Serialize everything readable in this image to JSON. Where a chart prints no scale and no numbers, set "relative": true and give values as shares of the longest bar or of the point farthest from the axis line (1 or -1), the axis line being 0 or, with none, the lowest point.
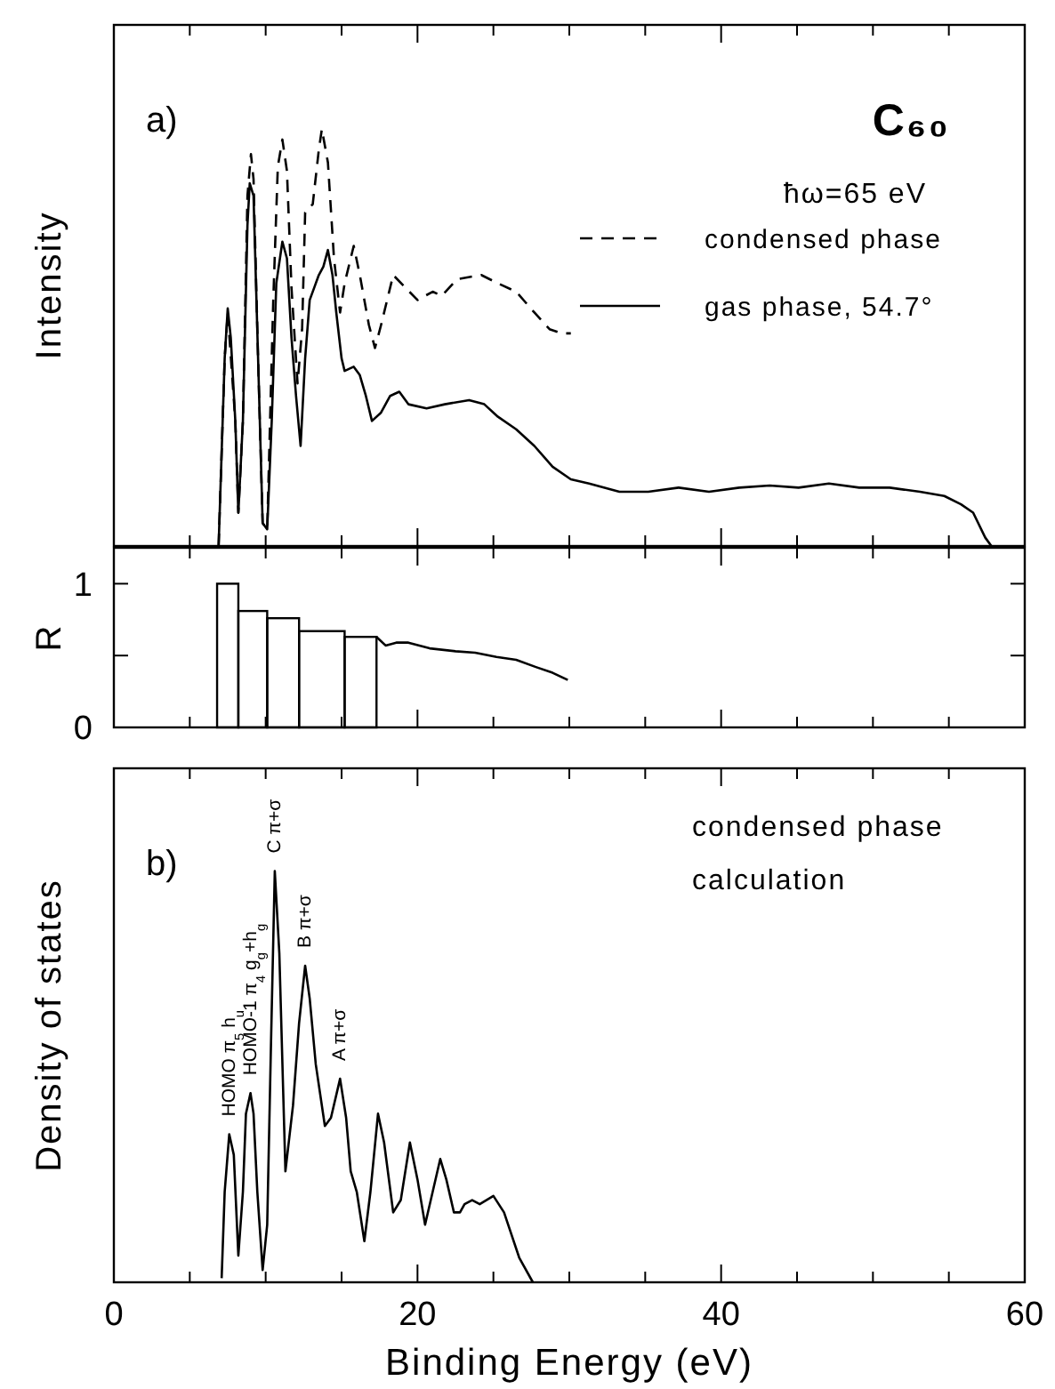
{
  "chart_data": [
    {
      "type": "line",
      "relative": true,
      "ylabel": "Intensity",
      "xlim": [
        0,
        60
      ],
      "xticks": [
        0,
        {
          "value": 5,
          "label": null
        },
        {
          "value": 10,
          "label": null
        },
        {
          "value": 15,
          "label": null
        },
        20,
        {
          "value": 25,
          "label": null
        },
        {
          "value": 30,
          "label": null
        },
        {
          "value": 35,
          "label": null
        },
        40,
        {
          "value": 45,
          "label": null
        },
        {
          "value": 50,
          "label": null
        },
        {
          "value": 55,
          "label": null
        },
        60
      ],
      "tick_labels": false,
      "legend": "top right",
      "annotations": [
        "a)",
        "C₆₀",
        "ħω=65 eV"
      ],
      "series": [
        {
          "name": "condensed phase",
          "color": "#000000",
          "line_style": "dashed",
          "x": [
            6.9,
            7.3,
            7.5,
            8.0,
            8.2,
            8.5,
            8.8,
            9.03,
            9.2,
            9.5,
            9.8,
            10.1,
            10.5,
            10.8,
            11.1,
            11.4,
            11.7,
            12.1,
            12.4,
            12.6,
            13.1,
            13.5,
            13.7,
            14.1,
            14.5,
            14.9,
            15.2,
            15.8,
            16.2,
            16.8,
            17.2,
            17.6,
            18.4,
            19.2,
            20.0,
            21.0,
            21.6,
            22.6,
            24.2,
            25.3,
            26.5,
            27.7,
            28.7,
            29.5,
            30.1
          ],
          "values": [
            0,
            0.45,
            0.56,
            0.3,
            0.08,
            0.3,
            0.84,
            0.94,
            0.88,
            0.45,
            0.055,
            0.04,
            0.59,
            0.91,
            0.975,
            0.9,
            0.62,
            0.39,
            0.52,
            0.8,
            0.82,
            0.95,
            1.0,
            0.92,
            0.69,
            0.56,
            0.63,
            0.72,
            0.65,
            0.53,
            0.475,
            0.53,
            0.65,
            0.62,
            0.59,
            0.61,
            0.6,
            0.64,
            0.65,
            0.63,
            0.61,
            0.56,
            0.52,
            0.51,
            0.51
          ]
        },
        {
          "name": "gas phase, 54.7°",
          "color": "#000000",
          "line_style": "solid",
          "x": [
            6.9,
            7.3,
            7.5,
            7.7,
            8.0,
            8.2,
            8.5,
            8.8,
            8.95,
            9.2,
            9.5,
            9.8,
            10.1,
            10.4,
            10.7,
            11.1,
            11.4,
            11.7,
            12.0,
            12.3,
            12.6,
            12.9,
            13.2,
            13.5,
            13.8,
            14.1,
            14.4,
            14.65,
            15.0,
            15.2,
            15.8,
            16.2,
            16.6,
            17.0,
            17.6,
            18.2,
            18.8,
            19.4,
            20.6,
            21.8,
            23.4,
            24.4,
            25.3,
            26.5,
            27.7,
            28.9,
            30.1,
            31.3,
            33.3,
            35.2,
            37.2,
            39.2,
            41.2,
            43.2,
            45.1,
            47.1,
            49.1,
            51.1,
            53.1,
            54.7,
            55.8,
            56.6,
            57.4,
            57.8
          ],
          "values": [
            0,
            0.45,
            0.57,
            0.5,
            0.3,
            0.08,
            0.3,
            0.77,
            0.87,
            0.84,
            0.45,
            0.055,
            0.04,
            0.3,
            0.63,
            0.73,
            0.69,
            0.5,
            0.36,
            0.24,
            0.45,
            0.59,
            0.62,
            0.65,
            0.67,
            0.71,
            0.65,
            0.56,
            0.45,
            0.42,
            0.43,
            0.41,
            0.36,
            0.3,
            0.32,
            0.36,
            0.37,
            0.34,
            0.33,
            0.34,
            0.35,
            0.34,
            0.31,
            0.28,
            0.24,
            0.19,
            0.16,
            0.15,
            0.13,
            0.13,
            0.14,
            0.13,
            0.14,
            0.145,
            0.14,
            0.15,
            0.14,
            0.14,
            0.13,
            0.12,
            0.1,
            0.08,
            0.02,
            0
          ]
        }
      ]
    },
    {
      "type": "histogram",
      "ylabel": "R",
      "xlim": [
        0,
        60
      ],
      "ylim": [
        0,
        1.25
      ],
      "xticks": [
        0,
        {
          "value": 5,
          "label": null
        },
        {
          "value": 10,
          "label": null
        },
        {
          "value": 15,
          "label": null
        },
        20,
        {
          "value": 25,
          "label": null
        },
        {
          "value": 30,
          "label": null
        },
        {
          "value": 35,
          "label": null
        },
        40,
        {
          "value": 45,
          "label": null
        },
        {
          "value": 50,
          "label": null
        },
        {
          "value": 55,
          "label": null
        },
        60
      ],
      "yticks": [
        0,
        {
          "value": 0.5,
          "label": null
        },
        1
      ],
      "tick_labels": "y",
      "series": [
        {
          "color": "#000000",
          "bins": [
            6.8,
            8.2,
            10.1,
            12.2,
            15.2,
            17.3
          ],
          "values": [
            1.0,
            0.81,
            0.76,
            0.67,
            0.63
          ]
        },
        {
          "type": "line",
          "color": "#000000",
          "x": [
            17.3,
            17.9,
            18.6,
            19.4,
            20.8,
            22.5,
            23.8,
            25.2,
            26.5,
            27.8,
            28.9,
            29.9
          ],
          "values": [
            0.63,
            0.57,
            0.59,
            0.59,
            0.55,
            0.53,
            0.52,
            0.49,
            0.47,
            0.42,
            0.38,
            0.33
          ]
        }
      ]
    },
    {
      "type": "line",
      "relative": true,
      "ylabel": "Density of states",
      "xlabel": "Binding Energy (eV)",
      "xlim": [
        0,
        60
      ],
      "xticks": [
        0,
        {
          "value": 5,
          "label": null
        },
        {
          "value": 10,
          "label": null
        },
        {
          "value": 15,
          "label": null
        },
        20,
        {
          "value": 25,
          "label": null
        },
        {
          "value": 30,
          "label": null
        },
        {
          "value": 35,
          "label": null
        },
        40,
        {
          "value": 45,
          "label": null
        },
        {
          "value": 50,
          "label": null
        },
        {
          "value": 55,
          "label": null
        },
        60
      ],
      "tick_labels": "x",
      "annotations": [
        "b)",
        "condensed phase calculation",
        {
          "text": "HOMO π$_{5}$ h$_{u}$",
          "x": 7.6,
          "y": 0.36
        },
        {
          "text": "HOMO-1 π$_{4}$ g$_{g}$+h$_{g}$",
          "x": 9.0,
          "y": 0.46
        },
        {
          "text": "C π+σ",
          "x": 10.6,
          "y": 1.0
        },
        {
          "text": "B π+σ",
          "x": 12.6,
          "y": 0.77
        },
        {
          "text": "A π+σ",
          "x": 14.9,
          "y": 0.495
        }
      ],
      "series": [
        {
          "color": "#000000",
          "x": [
            7.1,
            7.3,
            7.6,
            7.9,
            8.2,
            8.5,
            8.7,
            9.0,
            9.2,
            9.45,
            9.8,
            10.1,
            10.35,
            10.6,
            10.9,
            11.3,
            11.8,
            12.2,
            12.6,
            12.9,
            13.3,
            13.9,
            14.3,
            14.9,
            15.3,
            15.6,
            16.0,
            16.5,
            16.9,
            17.4,
            17.8,
            18.4,
            18.9,
            19.5,
            20.0,
            20.5,
            21.0,
            21.5,
            21.9,
            22.4,
            22.8,
            23.1,
            23.6,
            24.1,
            25.0,
            25.7,
            26.7,
            27.6
          ],
          "values": [
            0.01,
            0.22,
            0.36,
            0.31,
            0.065,
            0.22,
            0.41,
            0.46,
            0.41,
            0.22,
            0.03,
            0.14,
            0.58,
            1.0,
            0.8,
            0.27,
            0.43,
            0.63,
            0.77,
            0.69,
            0.53,
            0.38,
            0.4,
            0.495,
            0.4,
            0.27,
            0.22,
            0.1,
            0.22,
            0.41,
            0.34,
            0.17,
            0.2,
            0.34,
            0.25,
            0.14,
            0.22,
            0.3,
            0.25,
            0.17,
            0.17,
            0.19,
            0.2,
            0.19,
            0.21,
            0.17,
            0.06,
            0
          ]
        }
      ]
    }
  ]
}
